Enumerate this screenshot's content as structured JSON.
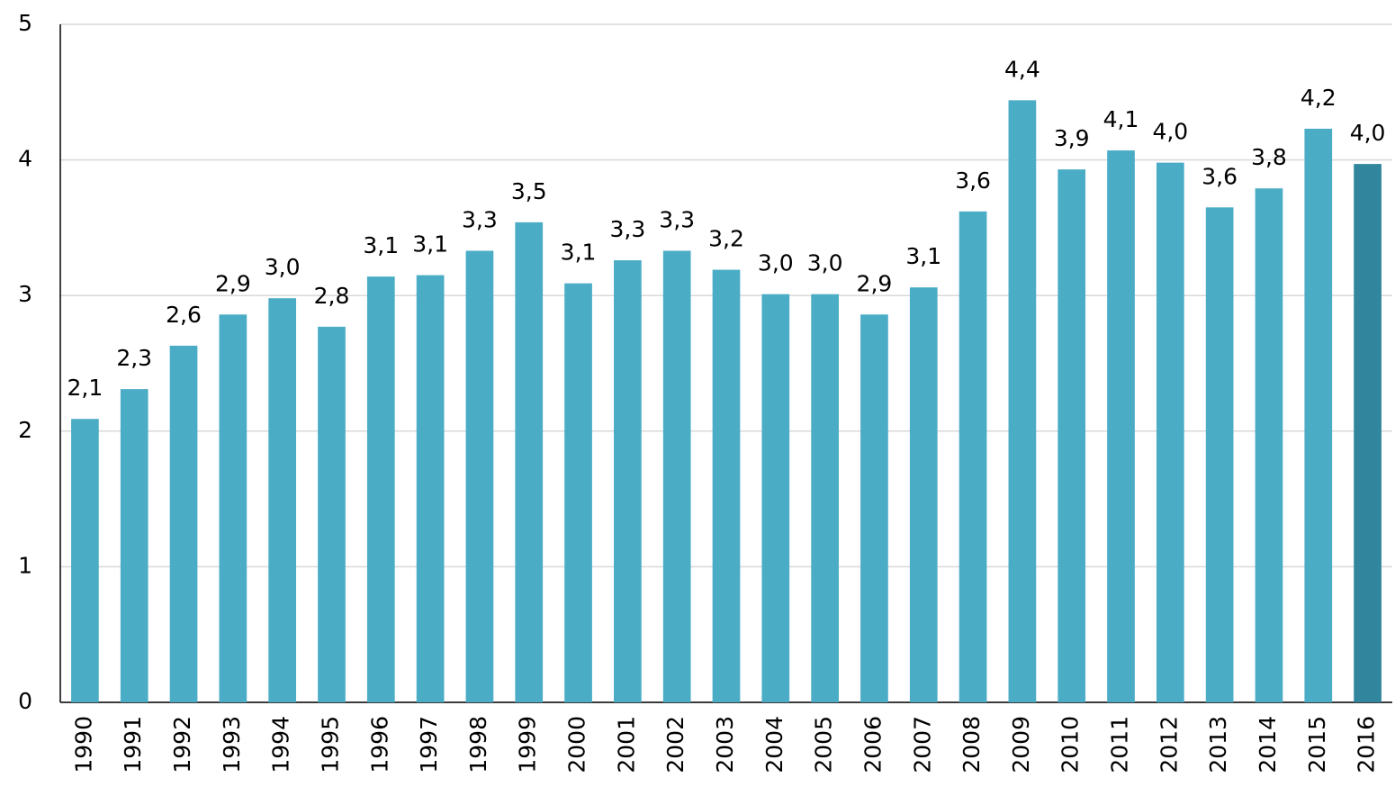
{
  "chart_data": {
    "type": "bar",
    "categories": [
      "1990",
      "1991",
      "1992",
      "1993",
      "1994",
      "1995",
      "1996",
      "1997",
      "1998",
      "1999",
      "2000",
      "2001",
      "2002",
      "2003",
      "2004",
      "2005",
      "2006",
      "2007",
      "2008",
      "2009",
      "2010",
      "2011",
      "2012",
      "2013",
      "2014",
      "2015",
      "2016"
    ],
    "values": [
      2.09,
      2.31,
      2.63,
      2.86,
      2.98,
      2.77,
      3.14,
      3.15,
      3.33,
      3.54,
      3.09,
      3.26,
      3.33,
      3.19,
      3.01,
      3.01,
      2.86,
      3.06,
      3.62,
      4.44,
      3.93,
      4.07,
      3.98,
      3.65,
      3.79,
      4.23,
      3.97
    ],
    "value_labels": [
      "2,1",
      "2,3",
      "2,6",
      "2,9",
      "3,0",
      "2,8",
      "3,1",
      "3,1",
      "3,3",
      "3,5",
      "3,1",
      "3,3",
      "3,3",
      "3,2",
      "3,0",
      "3,0",
      "2,9",
      "3,1",
      "3,6",
      "4,4",
      "3,9",
      "4,1",
      "4,0",
      "3,6",
      "3,8",
      "4,2",
      "4,0"
    ],
    "colors": [
      "#4bacc6",
      "#4bacc6",
      "#4bacc6",
      "#4bacc6",
      "#4bacc6",
      "#4bacc6",
      "#4bacc6",
      "#4bacc6",
      "#4bacc6",
      "#4bacc6",
      "#4bacc6",
      "#4bacc6",
      "#4bacc6",
      "#4bacc6",
      "#4bacc6",
      "#4bacc6",
      "#4bacc6",
      "#4bacc6",
      "#4bacc6",
      "#4bacc6",
      "#4bacc6",
      "#4bacc6",
      "#4bacc6",
      "#4bacc6",
      "#4bacc6",
      "#4bacc6",
      "#31859c"
    ],
    "ylim": [
      0,
      5
    ],
    "yticks": [
      0,
      1,
      2,
      3,
      4,
      5
    ],
    "grid": true
  }
}
